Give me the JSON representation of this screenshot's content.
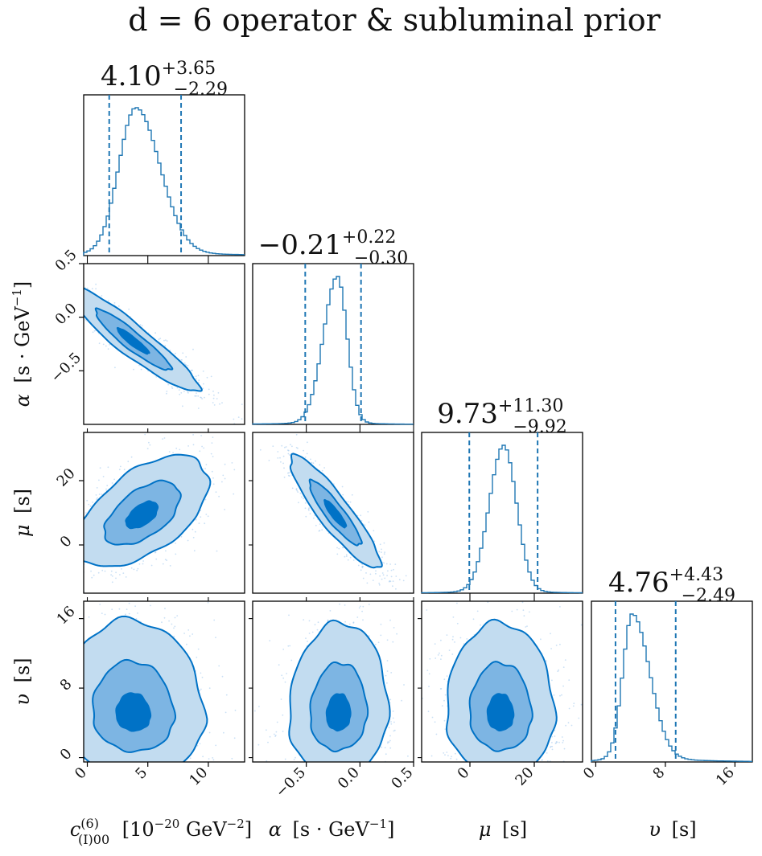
{
  "chart_data": {
    "type": "corner",
    "title": "d = 6 operator & subluminal prior",
    "colors": {
      "line": "#1f77b4",
      "contour_dark": "#0072c6",
      "contour_mid": "#7db5e3",
      "contour_light": "#c2dcf0",
      "points": "#9ec7ec"
    },
    "parameters": [
      {
        "key": "c",
        "label": "c(6)(I)00 [10^-20 GeV^-2]",
        "label_main": "c",
        "label_sup": "(6)",
        "label_sub": "(I)00",
        "label_unit": "[10",
        "label_unit_exp": "−20",
        "label_unit_tail": " GeV",
        "label_unit_exp2": "−2",
        "label_unit_close": "]",
        "median": 4.1,
        "plus": "+3.65",
        "minus": "−2.29",
        "median_text": "4.10",
        "lo": 1.81,
        "hi": 7.75,
        "range": [
          -0.3,
          13
        ],
        "ticks": [
          0,
          5,
          10
        ],
        "tick_labels": [
          "0",
          "5",
          "10"
        ]
      },
      {
        "key": "alpha",
        "label": "α [s · GeV^-1]",
        "label_main": "α",
        "label_unit": "[s · GeV",
        "label_unit_exp": "−1",
        "label_unit_close": "]",
        "median": -0.21,
        "plus": "+0.22",
        "minus": "−0.30",
        "median_text": "−0.21",
        "lo": -0.51,
        "hi": 0.01,
        "range": [
          -1.0,
          0.5
        ],
        "ticks": [
          -0.5,
          0.0,
          0.5
        ],
        "tick_labels": [
          "−0.5",
          "0.0",
          "0.5"
        ]
      },
      {
        "key": "mu",
        "label": "μ [s]",
        "label_main": "μ",
        "label_unit": "[s]",
        "median": 9.73,
        "plus": "+11.30",
        "minus": "−9.92",
        "median_text": "9.73",
        "lo": -0.19,
        "hi": 21.03,
        "range": [
          -15,
          35
        ],
        "ticks": [
          0,
          20
        ],
        "tick_labels": [
          "0",
          "20"
        ]
      },
      {
        "key": "upsilon",
        "label": "υ [s]",
        "label_main": "υ",
        "label_unit": "[s]",
        "median": 4.76,
        "plus": "+4.43",
        "minus": "−2.49",
        "median_text": "4.76",
        "lo": 2.27,
        "hi": 9.19,
        "range": [
          -0.5,
          18
        ],
        "ticks": [
          0,
          8,
          16
        ],
        "tick_labels": [
          "0",
          "8",
          "16"
        ]
      }
    ],
    "marginals": [
      {
        "param": "c",
        "center": 4.0,
        "sd_left": 1.4,
        "sd_right": 2.0,
        "tail": 0.03
      },
      {
        "param": "alpha",
        "center": -0.21,
        "sd_left": 0.13,
        "sd_right": 0.09,
        "tail": 0.02
      },
      {
        "param": "mu",
        "center": 10.5,
        "sd_left": 4.5,
        "sd_right": 4.0,
        "tail": 0.02
      },
      {
        "param": "upsilon",
        "center": 4.2,
        "sd_left": 1.1,
        "sd_right": 2.0,
        "tail": 0.04
      }
    ],
    "joints": [
      {
        "x": "c",
        "y": "alpha",
        "cx": 3.8,
        "cy": -0.23,
        "sx": 2.6,
        "sy": 0.22,
        "rho": -0.93,
        "skew": 0.15
      },
      {
        "x": "c",
        "y": "mu",
        "cx": 4.5,
        "cy": 9.0,
        "sx": 2.6,
        "sy": 7.5,
        "rho": 0.55,
        "skew": 0.2
      },
      {
        "x": "alpha",
        "y": "mu",
        "cx": -0.23,
        "cy": 9.5,
        "sx": 0.2,
        "sy": 8.0,
        "rho": -0.9,
        "skew": 0.1
      },
      {
        "x": "c",
        "y": "upsilon",
        "cx": 3.8,
        "cy": 4.8,
        "sx": 2.8,
        "sy": 3.4,
        "rho": -0.05,
        "skew": 0.55
      },
      {
        "x": "alpha",
        "y": "upsilon",
        "cx": -0.2,
        "cy": 4.8,
        "sx": 0.22,
        "sy": 3.3,
        "rho": 0.05,
        "skew": 0.55
      },
      {
        "x": "mu",
        "y": "upsilon",
        "cx": 9.5,
        "cy": 4.8,
        "sx": 8.0,
        "sy": 3.3,
        "rho": -0.02,
        "skew": 0.55
      }
    ],
    "contour_levels_sigma": [
      0.5,
      1.2,
      2.1
    ]
  }
}
